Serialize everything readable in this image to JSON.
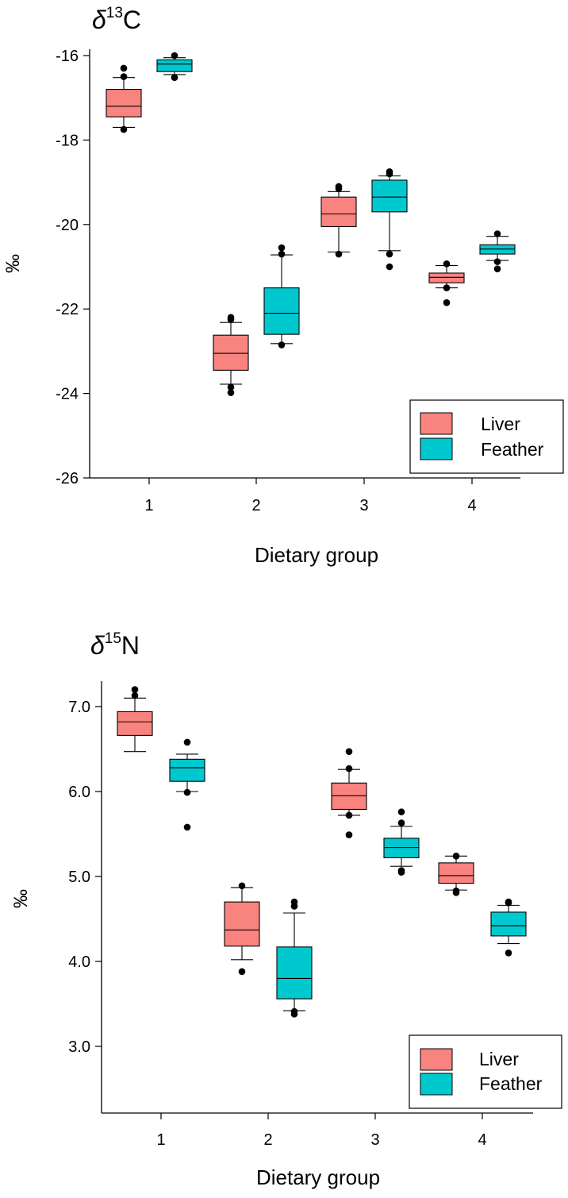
{
  "colors": {
    "liver": "#F8837F",
    "feather": "#00C8CF",
    "stroke": "#000000"
  },
  "chart_data": [
    {
      "type": "box",
      "title_symbol": "δ",
      "title_sup": "13",
      "title_element": "C",
      "xlabel": "Dietary group",
      "ylabel": "‰",
      "categories": [
        "1",
        "2",
        "3",
        "4"
      ],
      "ylim": [
        -26,
        -15.5
      ],
      "yticks": [
        -16,
        -18,
        -20,
        -22,
        -24,
        -26
      ],
      "ytick_labels": [
        "-16",
        "-18",
        "-20",
        "-22",
        "-24",
        "-26"
      ],
      "legend": [
        "Liver",
        "Feather"
      ],
      "legend_position": "bottom-right",
      "series": [
        {
          "name": "Liver",
          "boxes": [
            {
              "group": "1",
              "q1": -17.45,
              "median": -17.2,
              "q3": -16.8,
              "whisker_low": -17.7,
              "whisker_high": -16.52,
              "outliers": [
                -16.3,
                -16.5,
                -17.75
              ]
            },
            {
              "group": "2",
              "q1": -23.45,
              "median": -23.05,
              "q3": -22.62,
              "whisker_low": -23.78,
              "whisker_high": -22.32,
              "outliers": [
                -22.2,
                -22.25,
                -23.85,
                -23.98
              ]
            },
            {
              "group": "3",
              "q1": -20.05,
              "median": -19.75,
              "q3": -19.35,
              "whisker_low": -20.65,
              "whisker_high": -19.22,
              "outliers": [
                -19.1,
                -19.15,
                -20.7
              ]
            },
            {
              "group": "4",
              "q1": -21.38,
              "median": -21.25,
              "q3": -21.15,
              "whisker_low": -21.5,
              "whisker_high": -20.97,
              "outliers": [
                -20.93,
                -21.5,
                -21.85
              ]
            }
          ]
        },
        {
          "name": "Feather",
          "boxes": [
            {
              "group": "1",
              "q1": -16.38,
              "median": -16.2,
              "q3": -16.1,
              "whisker_low": -16.45,
              "whisker_high": -16.05,
              "outliers": [
                -16.0,
                -16.52
              ]
            },
            {
              "group": "2",
              "q1": -22.6,
              "median": -22.1,
              "q3": -21.5,
              "whisker_low": -22.82,
              "whisker_high": -20.72,
              "outliers": [
                -20.55,
                -20.7,
                -22.85
              ]
            },
            {
              "group": "3",
              "q1": -19.7,
              "median": -19.35,
              "q3": -18.95,
              "whisker_low": -20.62,
              "whisker_high": -18.85,
              "outliers": [
                -18.75,
                -18.8,
                -20.7,
                -21.0
              ]
            },
            {
              "group": "4",
              "q1": -20.7,
              "median": -20.58,
              "q3": -20.48,
              "whisker_low": -20.85,
              "whisker_high": -20.28,
              "outliers": [
                -20.22,
                -20.88,
                -21.05
              ]
            }
          ]
        }
      ]
    },
    {
      "type": "box",
      "title_symbol": "δ",
      "title_sup": "15",
      "title_element": "N",
      "xlabel": "Dietary group",
      "ylabel": "‰",
      "categories": [
        "1",
        "2",
        "3",
        "4"
      ],
      "ylim": [
        2.2,
        7.3
      ],
      "yticks": [
        7.0,
        6.0,
        5.0,
        4.0,
        3.0
      ],
      "ytick_labels": [
        "7.0",
        "6.0",
        "5.0",
        "4.0",
        "3.0"
      ],
      "legend": [
        "Liver",
        "Feather"
      ],
      "legend_position": "bottom-right",
      "series": [
        {
          "name": "Liver",
          "boxes": [
            {
              "group": "1",
              "q1": 6.66,
              "median": 6.82,
              "q3": 6.94,
              "whisker_low": 6.47,
              "whisker_high": 7.1,
              "outliers": [
                7.13,
                7.2
              ]
            },
            {
              "group": "2",
              "q1": 4.18,
              "median": 4.37,
              "q3": 4.7,
              "whisker_low": 4.02,
              "whisker_high": 4.87,
              "outliers": [
                4.89,
                3.88
              ]
            },
            {
              "group": "3",
              "q1": 5.79,
              "median": 5.95,
              "q3": 6.1,
              "whisker_low": 5.72,
              "whisker_high": 6.26,
              "outliers": [
                6.47,
                6.27,
                5.72,
                5.49
              ]
            },
            {
              "group": "4",
              "q1": 4.92,
              "median": 5.01,
              "q3": 5.16,
              "whisker_low": 4.84,
              "whisker_high": 5.24,
              "outliers": [
                5.24,
                4.83,
                4.81
              ]
            }
          ]
        },
        {
          "name": "Feather",
          "boxes": [
            {
              "group": "1",
              "q1": 6.12,
              "median": 6.28,
              "q3": 6.38,
              "whisker_low": 6.0,
              "whisker_high": 6.44,
              "outliers": [
                6.58,
                5.99,
                5.58
              ]
            },
            {
              "group": "2",
              "q1": 3.56,
              "median": 3.8,
              "q3": 4.17,
              "whisker_low": 3.42,
              "whisker_high": 4.57,
              "outliers": [
                4.7,
                4.65,
                3.41,
                3.38
              ]
            },
            {
              "group": "3",
              "q1": 5.22,
              "median": 5.34,
              "q3": 5.45,
              "whisker_low": 5.12,
              "whisker_high": 5.59,
              "outliers": [
                5.76,
                5.63,
                5.07,
                5.05
              ]
            },
            {
              "group": "4",
              "q1": 4.3,
              "median": 4.42,
              "q3": 4.58,
              "whisker_low": 4.21,
              "whisker_high": 4.66,
              "outliers": [
                4.69,
                4.7,
                4.1
              ]
            }
          ]
        }
      ]
    }
  ]
}
